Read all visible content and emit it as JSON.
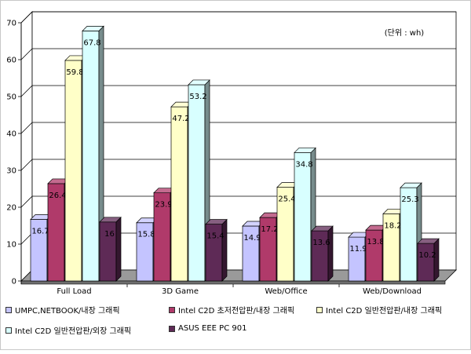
{
  "chart_data": {
    "type": "bar",
    "unit_note": "(단위 : wh)",
    "categories": [
      "Full Load",
      "3D Game",
      "Web/Office",
      "Web/Download"
    ],
    "ylim": [
      0,
      70
    ],
    "yticks": [
      0,
      10,
      20,
      30,
      40,
      50,
      60,
      70
    ],
    "grid": true,
    "legend_position": "bottom",
    "series": [
      {
        "name": "UMPC,NETBOOK/내장 그래픽",
        "values": [
          16.7,
          15.8,
          14.9,
          11.9
        ],
        "labels": [
          "16.7",
          "15.8",
          "14.9",
          "11.9"
        ],
        "color": "#c4c4ff"
      },
      {
        "name": "Intel C2D 초저전압판/내장 그래픽",
        "values": [
          26.4,
          23.9,
          17.2,
          13.8
        ],
        "labels": [
          "26.4",
          "23.9",
          "17.2",
          "13.8"
        ],
        "color": "#b03a6a"
      },
      {
        "name": "Intel C2D 일반전압판/내장 그래픽",
        "values": [
          59.8,
          47.2,
          25.4,
          18.2
        ],
        "labels": [
          "59.8",
          "47.2",
          "25.4",
          "18.2"
        ],
        "color": "#ffffc8"
      },
      {
        "name": "Intel C2D 일반전압판/외장 그래픽",
        "values": [
          67.8,
          53.2,
          34.8,
          25.3
        ],
        "labels": [
          "67.8",
          "53.2",
          "34.8",
          "25.3"
        ],
        "color": "#d8ffff"
      },
      {
        "name": "ASUS EEE PC 901",
        "values": [
          16,
          15.4,
          13.6,
          10.2
        ],
        "labels": [
          "16",
          "15.4",
          "13.6",
          "10.2"
        ],
        "color": "#5e2a56"
      }
    ]
  }
}
